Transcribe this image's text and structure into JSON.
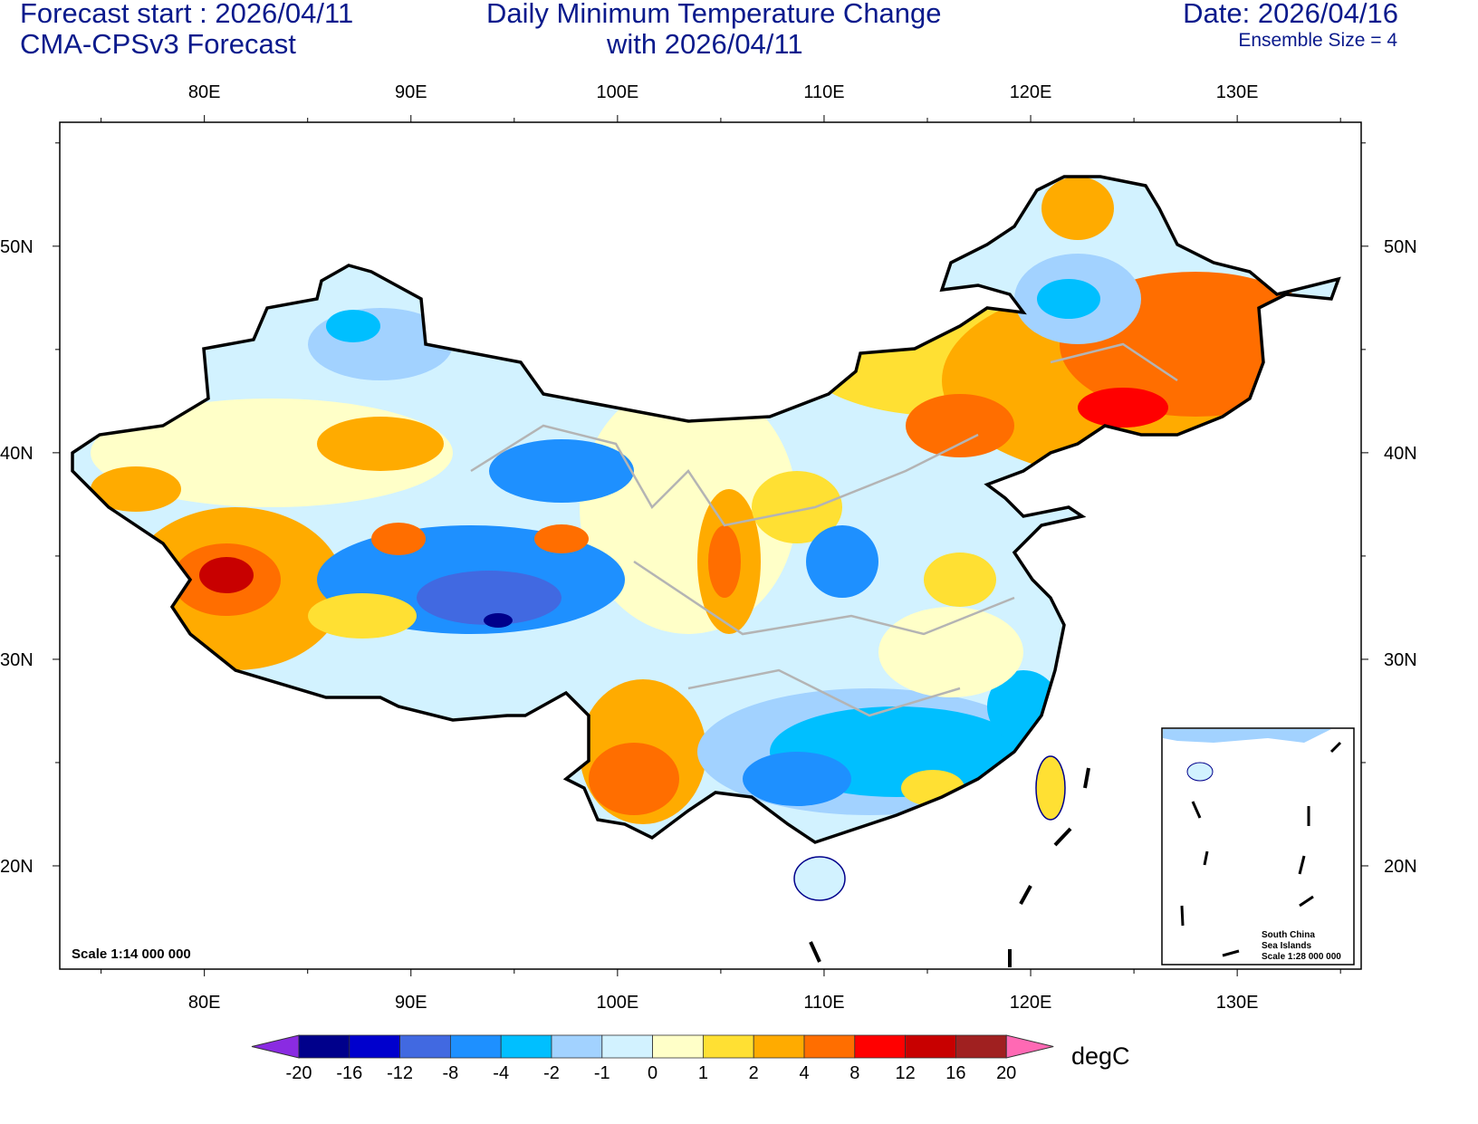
{
  "header": {
    "forecast_start": "Forecast start : 2026/04/11",
    "model": "CMA-CPSv3 Forecast",
    "title_line1": "Daily Minimum Temperature Change",
    "title_line2": "with 2026/04/11",
    "date": "Date: 2026/04/16",
    "ensemble": "Ensemble Size = 4"
  },
  "axes": {
    "lon_labels": [
      "80E",
      "90E",
      "100E",
      "110E",
      "120E",
      "130E"
    ],
    "lon_values": [
      80,
      90,
      100,
      110,
      120,
      130
    ],
    "lat_labels": [
      "50N",
      "40N",
      "30N",
      "20N"
    ],
    "lat_values": [
      50,
      40,
      30,
      20
    ],
    "lon_range": [
      73,
      136
    ],
    "lat_range": [
      15,
      56
    ]
  },
  "map": {
    "scale_text": "Scale 1:14 000 000",
    "inset": {
      "line1": "South China",
      "line2": "Sea Islands",
      "line3": "Scale 1:28 000 000"
    }
  },
  "colorbar": {
    "unit": "degC",
    "labels": [
      "-20",
      "-16",
      "-12",
      "-8",
      "-4",
      "-2",
      "-1",
      "0",
      "1",
      "2",
      "4",
      "8",
      "12",
      "16",
      "20"
    ],
    "colors": [
      "#00008b",
      "#0000cd",
      "#4169e1",
      "#1e90ff",
      "#00bfff",
      "#a2d2ff",
      "#d2f2ff",
      "#ffffc8",
      "#ffe033",
      "#ffab00",
      "#ff6e00",
      "#ff0000",
      "#c80000",
      "#a02020"
    ],
    "low_color": "#8a2be2",
    "high_color": "#ff69b4"
  }
}
